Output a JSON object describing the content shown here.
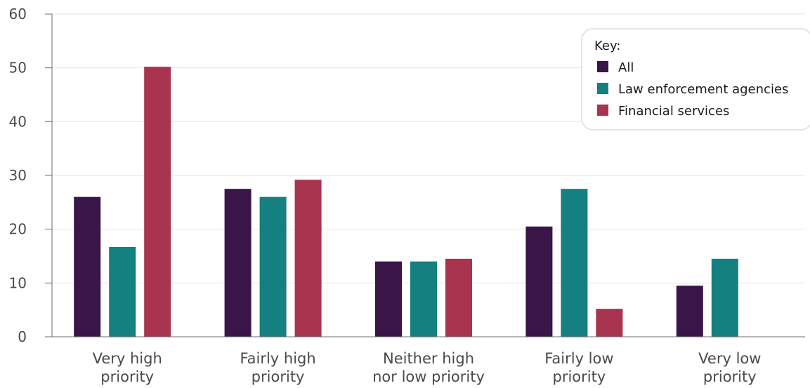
{
  "chart_data": {
    "type": "bar",
    "categories": [
      [
        "Very high",
        "priority"
      ],
      [
        "Fairly high",
        "priority"
      ],
      [
        "Neither high",
        "nor low priority"
      ],
      [
        "Fairly low",
        "priority"
      ],
      [
        "Very low",
        "priority"
      ]
    ],
    "series": [
      {
        "name": "All",
        "color": "#3a1548",
        "values": [
          26,
          27.5,
          14,
          20.5,
          9.5
        ]
      },
      {
        "name": "Law enforcement agencies",
        "color": "#14807f",
        "values": [
          16.7,
          26,
          14,
          27.5,
          14.5
        ]
      },
      {
        "name": "Financial services",
        "color": "#a8344f",
        "values": [
          50.2,
          29.2,
          14.5,
          5.2,
          0
        ]
      }
    ],
    "ylim": [
      0,
      60
    ],
    "yticks": [
      0,
      10,
      20,
      30,
      40,
      50,
      60
    ],
    "grid": true,
    "legend": {
      "title": "Key:",
      "placement": "top-right"
    }
  }
}
